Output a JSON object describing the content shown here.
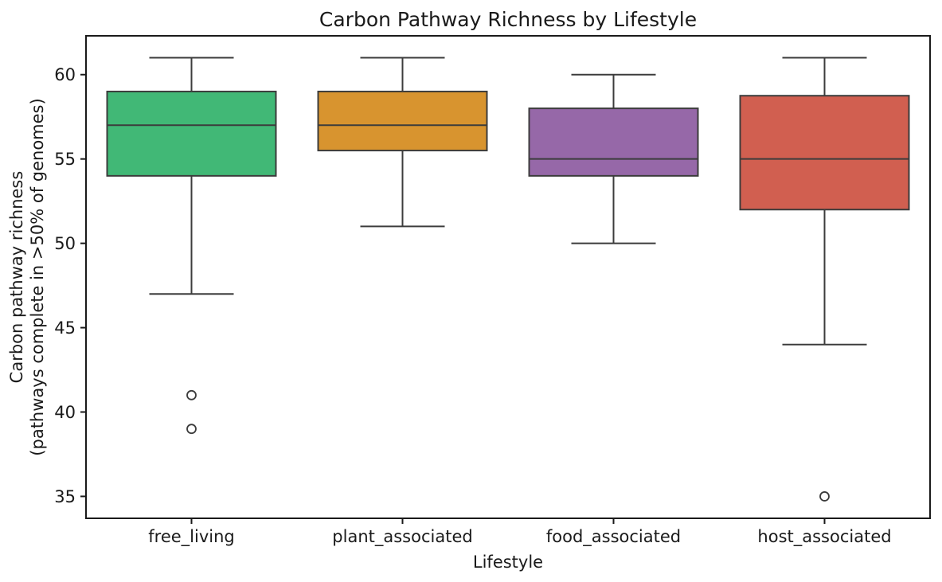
{
  "chart_data": {
    "type": "box",
    "title": "Carbon Pathway Richness by Lifestyle",
    "xlabel": "Lifestyle",
    "ylabel_lines": [
      "Carbon pathway richness",
      "(pathways complete in >50% of genomes)"
    ],
    "categories": [
      "free_living",
      "plant_associated",
      "food_associated",
      "host_associated"
    ],
    "yticks": [
      35,
      40,
      45,
      50,
      55,
      60
    ],
    "ylim": [
      33.7,
      62.3
    ],
    "grid": false,
    "legend": "none",
    "edge_color": "#3c3c3c",
    "spine_color": "#1a1a1a",
    "series": [
      {
        "category": "free_living",
        "whisker_low": 47,
        "q1": 54,
        "median": 57,
        "q3": 59,
        "whisker_high": 61,
        "outliers": [
          41,
          39
        ],
        "color": "#41b876"
      },
      {
        "category": "plant_associated",
        "whisker_low": 51,
        "q1": 55.5,
        "median": 57,
        "q3": 59,
        "whisker_high": 61,
        "outliers": [],
        "color": "#d8942f"
      },
      {
        "category": "food_associated",
        "whisker_low": 50,
        "q1": 54,
        "median": 55,
        "q3": 58,
        "whisker_high": 60,
        "outliers": [],
        "color": "#9668a8"
      },
      {
        "category": "host_associated",
        "whisker_low": 44,
        "q1": 52,
        "median": 55,
        "q3": 58.75,
        "whisker_high": 61,
        "outliers": [
          35
        ],
        "color": "#d15f50"
      }
    ]
  }
}
